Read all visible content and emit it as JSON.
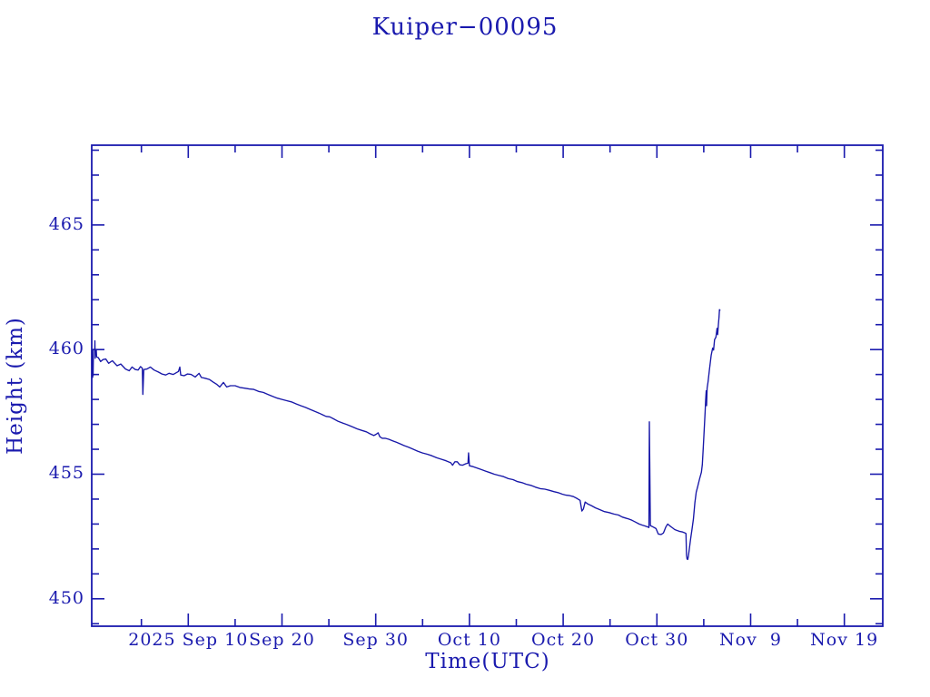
{
  "colors": {
    "background": "#ffffff",
    "ink": "#1a1aae",
    "line": "#1717a8"
  },
  "chart_data": {
    "type": "line",
    "title": "Kuiper−00095",
    "xlabel": "Time(UTC)",
    "ylabel": "Height (km)",
    "x_unit": "days since 2025-09-01 00:00 UTC",
    "xlim": [
      -1.3,
      83.1
    ],
    "ylim": [
      448.9,
      468.2
    ],
    "grid": false,
    "legend": "none",
    "frame": "box with inward ticks on all four sides",
    "x_ticks": [
      {
        "v": 9,
        "label": "2025 Sep 10"
      },
      {
        "v": 19,
        "label": "Sep 20"
      },
      {
        "v": 29,
        "label": "Sep 30"
      },
      {
        "v": 39,
        "label": "Oct 10"
      },
      {
        "v": 49,
        "label": "Oct 20"
      },
      {
        "v": 59,
        "label": "Oct 30"
      },
      {
        "v": 69,
        "label": "Nov  9"
      },
      {
        "v": 79,
        "label": "Nov 19"
      }
    ],
    "x_minor_ticks": [
      4,
      14,
      24,
      34,
      44,
      54,
      64,
      74
    ],
    "y_ticks": [
      {
        "v": 450,
        "label": "450"
      },
      {
        "v": 455,
        "label": "455"
      },
      {
        "v": 460,
        "label": "460"
      },
      {
        "v": 465,
        "label": "465"
      }
    ],
    "y_minor_ticks": [
      449,
      451,
      452,
      453,
      454,
      456,
      457,
      458,
      459,
      461,
      462,
      463,
      464,
      466,
      467,
      468
    ],
    "series": [
      {
        "name": "height_km",
        "points": [
          [
            -1.27,
            459.55
          ],
          [
            -1.26,
            460.0
          ],
          [
            -1.24,
            458.95
          ],
          [
            -1.22,
            459.6
          ],
          [
            -1.2,
            458.88
          ],
          [
            -1.17,
            459.5
          ],
          [
            -1.15,
            458.95
          ],
          [
            -1.12,
            459.98
          ],
          [
            -1.05,
            460.0
          ],
          [
            -0.98,
            460.0
          ],
          [
            -0.96,
            460.35
          ],
          [
            -0.93,
            459.65
          ],
          [
            -0.9,
            460.0
          ],
          [
            -0.82,
            459.98
          ],
          [
            -0.78,
            459.7
          ],
          [
            -0.6,
            459.68
          ],
          [
            -0.35,
            459.52
          ],
          [
            -0.1,
            459.6
          ],
          [
            0.2,
            459.62
          ],
          [
            0.5,
            459.45
          ],
          [
            0.9,
            459.55
          ],
          [
            1.4,
            459.35
          ],
          [
            1.8,
            459.42
          ],
          [
            2.3,
            459.22
          ],
          [
            2.7,
            459.15
          ],
          [
            3.0,
            459.3
          ],
          [
            3.35,
            459.2
          ],
          [
            3.65,
            459.18
          ],
          [
            3.9,
            459.32
          ],
          [
            4.1,
            459.25
          ],
          [
            4.16,
            458.2
          ],
          [
            4.25,
            459.2
          ],
          [
            4.6,
            459.22
          ],
          [
            4.95,
            459.3
          ],
          [
            5.35,
            459.18
          ],
          [
            5.8,
            459.1
          ],
          [
            6.2,
            459.02
          ],
          [
            6.6,
            458.98
          ],
          [
            6.95,
            459.05
          ],
          [
            7.4,
            459.0
          ],
          [
            7.95,
            459.12
          ],
          [
            8.1,
            459.3
          ],
          [
            8.2,
            458.98
          ],
          [
            8.55,
            458.95
          ],
          [
            8.9,
            459.02
          ],
          [
            9.3,
            459.0
          ],
          [
            9.75,
            458.9
          ],
          [
            10.15,
            459.05
          ],
          [
            10.4,
            458.88
          ],
          [
            10.8,
            458.85
          ],
          [
            11.25,
            458.8
          ],
          [
            11.65,
            458.7
          ],
          [
            12.05,
            458.6
          ],
          [
            12.35,
            458.5
          ],
          [
            12.75,
            458.68
          ],
          [
            13.1,
            458.5
          ],
          [
            13.5,
            458.55
          ],
          [
            14.0,
            458.55
          ],
          [
            14.5,
            458.48
          ],
          [
            15.0,
            458.45
          ],
          [
            15.5,
            458.42
          ],
          [
            16.0,
            458.4
          ],
          [
            16.5,
            458.32
          ],
          [
            17.0,
            458.28
          ],
          [
            17.5,
            458.2
          ],
          [
            18.0,
            458.12
          ],
          [
            18.5,
            458.05
          ],
          [
            19.0,
            458.0
          ],
          [
            19.5,
            457.95
          ],
          [
            20.0,
            457.9
          ],
          [
            20.5,
            457.82
          ],
          [
            21.0,
            457.75
          ],
          [
            21.5,
            457.68
          ],
          [
            22.0,
            457.6
          ],
          [
            22.5,
            457.52
          ],
          [
            22.95,
            457.45
          ],
          [
            23.35,
            457.38
          ],
          [
            23.7,
            457.32
          ],
          [
            24.1,
            457.3
          ],
          [
            24.5,
            457.22
          ],
          [
            25.0,
            457.12
          ],
          [
            25.5,
            457.05
          ],
          [
            26.0,
            456.98
          ],
          [
            26.5,
            456.9
          ],
          [
            27.0,
            456.82
          ],
          [
            27.5,
            456.76
          ],
          [
            28.0,
            456.7
          ],
          [
            28.4,
            456.62
          ],
          [
            28.8,
            456.55
          ],
          [
            29.05,
            456.6
          ],
          [
            29.25,
            456.66
          ],
          [
            29.45,
            456.5
          ],
          [
            29.7,
            456.44
          ],
          [
            30.0,
            456.44
          ],
          [
            30.4,
            456.4
          ],
          [
            30.8,
            456.34
          ],
          [
            31.2,
            456.28
          ],
          [
            31.6,
            456.22
          ],
          [
            32.0,
            456.15
          ],
          [
            32.5,
            456.08
          ],
          [
            33.0,
            456.0
          ],
          [
            33.5,
            455.92
          ],
          [
            34.0,
            455.85
          ],
          [
            34.5,
            455.8
          ],
          [
            35.0,
            455.74
          ],
          [
            35.5,
            455.66
          ],
          [
            36.0,
            455.6
          ],
          [
            36.5,
            455.54
          ],
          [
            37.0,
            455.46
          ],
          [
            37.2,
            455.36
          ],
          [
            37.45,
            455.5
          ],
          [
            37.7,
            455.5
          ],
          [
            37.95,
            455.38
          ],
          [
            38.25,
            455.36
          ],
          [
            38.6,
            455.42
          ],
          [
            38.85,
            455.44
          ],
          [
            38.9,
            455.85
          ],
          [
            39.0,
            455.34
          ],
          [
            39.4,
            455.3
          ],
          [
            39.85,
            455.24
          ],
          [
            40.3,
            455.18
          ],
          [
            40.75,
            455.12
          ],
          [
            41.2,
            455.06
          ],
          [
            41.65,
            455.0
          ],
          [
            42.15,
            454.95
          ],
          [
            42.65,
            454.9
          ],
          [
            43.15,
            454.82
          ],
          [
            43.65,
            454.78
          ],
          [
            44.15,
            454.7
          ],
          [
            44.6,
            454.66
          ],
          [
            45.05,
            454.6
          ],
          [
            45.55,
            454.55
          ],
          [
            46.05,
            454.48
          ],
          [
            46.55,
            454.42
          ],
          [
            47.05,
            454.4
          ],
          [
            47.55,
            454.35
          ],
          [
            48.0,
            454.3
          ],
          [
            48.45,
            454.26
          ],
          [
            48.9,
            454.2
          ],
          [
            49.3,
            454.16
          ],
          [
            49.7,
            454.14
          ],
          [
            50.1,
            454.1
          ],
          [
            50.5,
            454.02
          ],
          [
            50.8,
            453.95
          ],
          [
            51.0,
            453.52
          ],
          [
            51.15,
            453.6
          ],
          [
            51.35,
            453.88
          ],
          [
            51.65,
            453.8
          ],
          [
            52.0,
            453.74
          ],
          [
            52.45,
            453.65
          ],
          [
            52.9,
            453.58
          ],
          [
            53.4,
            453.5
          ],
          [
            53.9,
            453.46
          ],
          [
            54.4,
            453.4
          ],
          [
            54.9,
            453.36
          ],
          [
            55.3,
            453.28
          ],
          [
            55.65,
            453.24
          ],
          [
            56.0,
            453.2
          ],
          [
            56.35,
            453.15
          ],
          [
            56.7,
            453.08
          ],
          [
            57.1,
            453.0
          ],
          [
            57.4,
            452.96
          ],
          [
            57.75,
            452.92
          ],
          [
            58.05,
            452.88
          ],
          [
            58.15,
            452.86
          ],
          [
            58.2,
            457.1
          ],
          [
            58.3,
            452.94
          ],
          [
            58.6,
            452.88
          ],
          [
            58.9,
            452.82
          ],
          [
            59.15,
            452.6
          ],
          [
            59.45,
            452.58
          ],
          [
            59.7,
            452.64
          ],
          [
            59.95,
            452.88
          ],
          [
            60.15,
            453.0
          ],
          [
            60.4,
            452.92
          ],
          [
            60.65,
            452.85
          ],
          [
            60.9,
            452.78
          ],
          [
            61.15,
            452.74
          ],
          [
            61.45,
            452.7
          ],
          [
            61.75,
            452.68
          ],
          [
            62.0,
            452.64
          ],
          [
            62.1,
            452.62
          ],
          [
            62.16,
            451.76
          ],
          [
            62.22,
            451.6
          ],
          [
            62.3,
            451.58
          ],
          [
            62.36,
            451.72
          ],
          [
            62.46,
            452.0
          ],
          [
            62.6,
            452.4
          ],
          [
            62.75,
            452.8
          ],
          [
            62.9,
            453.2
          ],
          [
            63.05,
            453.85
          ],
          [
            63.2,
            454.28
          ],
          [
            63.35,
            454.5
          ],
          [
            63.55,
            454.8
          ],
          [
            63.75,
            455.08
          ],
          [
            63.85,
            455.38
          ],
          [
            63.95,
            456.1
          ],
          [
            64.05,
            456.8
          ],
          [
            64.15,
            457.5
          ],
          [
            64.2,
            458.0
          ],
          [
            64.26,
            458.35
          ],
          [
            64.3,
            457.75
          ],
          [
            64.36,
            458.45
          ],
          [
            64.46,
            458.7
          ],
          [
            64.6,
            459.18
          ],
          [
            64.8,
            459.78
          ],
          [
            64.95,
            460.06
          ],
          [
            65.05,
            459.98
          ],
          [
            65.15,
            460.4
          ],
          [
            65.3,
            460.5
          ],
          [
            65.42,
            460.85
          ],
          [
            65.48,
            460.6
          ],
          [
            65.56,
            461.0
          ],
          [
            65.63,
            461.3
          ],
          [
            65.68,
            461.6
          ],
          [
            65.73,
            461.58
          ]
        ]
      }
    ]
  }
}
